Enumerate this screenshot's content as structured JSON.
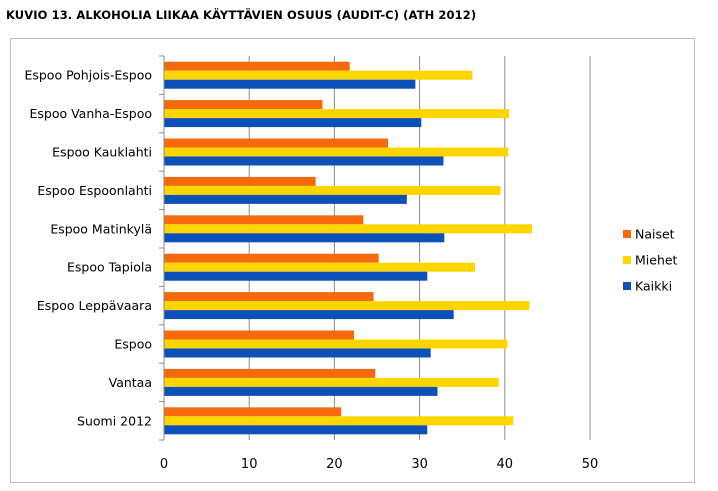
{
  "title": "KUVIO 13. ALKOHOLIA LIIKAA KÄYTTÄVIEN OSUUS (AUDIT-C) (ATH 2012)",
  "chart_data": {
    "type": "bar",
    "orientation": "horizontal",
    "title": "KUVIO 13. ALKOHOLIA LIIKAA KÄYTTÄVIEN OSUUS (AUDIT-C) (ATH 2012)",
    "categories": [
      "Espoo Pohjois-Espoo",
      "Espoo Vanha-Espoo",
      "Espoo Kauklahti",
      "Espoo Espoonlahti",
      "Espoo Matinkylä",
      "Espoo Tapiola",
      "Espoo Leppävaara",
      "Espoo",
      "Vantaa",
      "Suomi 2012"
    ],
    "series": [
      {
        "name": "Naiset",
        "color": "#f46a0c",
        "values": [
          21.8,
          18.6,
          26.3,
          17.8,
          23.4,
          25.2,
          24.6,
          22.3,
          24.8,
          20.8
        ]
      },
      {
        "name": "Miehet",
        "color": "#ffd500",
        "values": [
          36.2,
          40.5,
          40.4,
          39.5,
          43.2,
          36.5,
          42.9,
          40.3,
          39.3,
          41.0
        ]
      },
      {
        "name": "Kaikki",
        "color": "#0d50b8",
        "values": [
          29.5,
          30.2,
          32.8,
          28.5,
          32.9,
          30.9,
          34.0,
          31.3,
          32.1,
          30.9
        ]
      }
    ],
    "xlim": [
      0,
      50
    ],
    "xticks": [
      0,
      10,
      20,
      30,
      40,
      50
    ],
    "grid": "vertical",
    "legend": "right"
  }
}
